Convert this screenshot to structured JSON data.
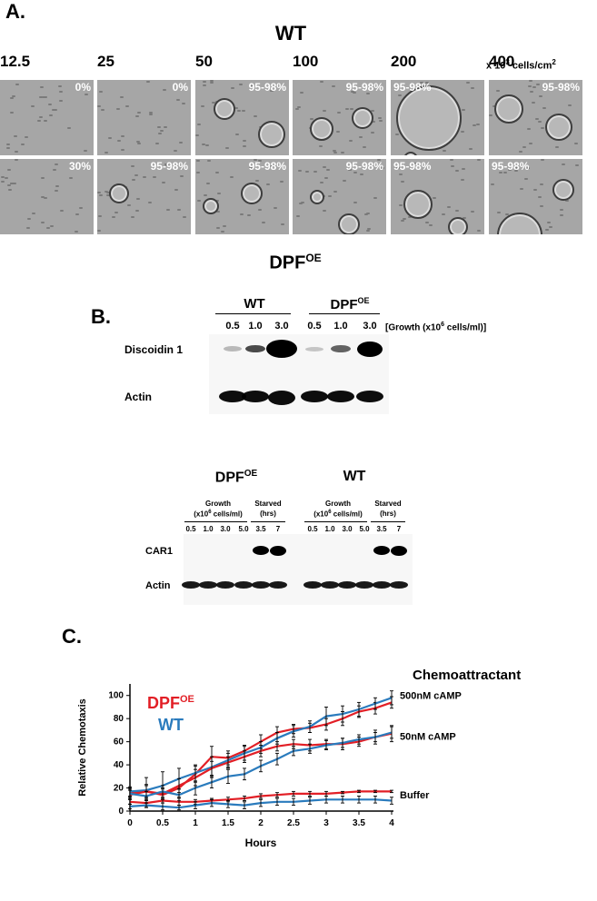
{
  "panel_a": {
    "label": "A.",
    "title_top": "WT",
    "title_bottom_base": "DPF",
    "title_bottom_sup": "OE",
    "densities": [
      "12.5",
      "25",
      "50",
      "100",
      "200",
      "400"
    ],
    "unit_base": "x 10",
    "unit_sup": "3",
    "unit_rest": " cells/cm",
    "unit_sup2": "2",
    "row_wt": [
      "0%",
      "0%",
      "95-98%",
      "95-98%",
      "95-98%",
      "95-98%"
    ],
    "row_dpf": [
      "30%",
      "95-98%",
      "95-98%",
      "95-98%",
      "95-98%",
      "95-98%"
    ]
  },
  "panel_b": {
    "label": "B.",
    "blot1": {
      "group_wt": "WT",
      "group_dpf_base": "DPF",
      "group_dpf_sup": "OE",
      "lanes": [
        "0.5",
        "1.0",
        "3.0",
        "0.5",
        "1.0",
        "3.0"
      ],
      "growth_label_base": "[Growth (x10",
      "growth_label_sup": "6",
      "growth_label_rest": " cells/ml)]",
      "row1": "Discoidin 1",
      "row2": "Actin"
    },
    "blot2": {
      "group_dpf_base": "DPF",
      "group_dpf_sup": "OE",
      "group_wt": "WT",
      "growth_line1": "Growth",
      "growth_line2_base": "(x10",
      "growth_line2_sup": "6",
      "growth_line2_rest": " cells/ml)",
      "starved_line1": "Starved",
      "starved_line2": "(hrs)",
      "lanes": [
        "0.5",
        "1.0",
        "3.0",
        "5.0",
        "3.5",
        "7"
      ],
      "row1": "CAR1",
      "row2": "Actin"
    }
  },
  "panel_c": {
    "label": "C.",
    "legend_dpf_base": "DPF",
    "legend_dpf_sup": "OE",
    "legend_wt": "WT",
    "chemo_title": "Chemoattractant",
    "colors": {
      "dpf": "#e21f26",
      "wt": "#2a7bbd"
    },
    "chart_data": {
      "type": "line",
      "xlabel": "Hours",
      "ylabel": "Relative  Chemotaxis",
      "xlim": [
        0,
        4
      ],
      "ylim": [
        0,
        110
      ],
      "xticks": [
        "0",
        "0.5",
        "1",
        "1.5",
        "2",
        "2.5",
        "3",
        "3.5",
        "4"
      ],
      "yticks": [
        "0",
        "20",
        "40",
        "60",
        "80",
        "100"
      ],
      "x": [
        0,
        0.25,
        0.5,
        0.75,
        1,
        1.25,
        1.5,
        1.75,
        2,
        2.25,
        2.5,
        2.75,
        3,
        3.25,
        3.5,
        3.75,
        4
      ],
      "annotations": [
        "500nM cAMP",
        "50nM cAMP",
        "Buffer"
      ],
      "series": [
        {
          "name": "DPFOE",
          "group": "500nM cAMP",
          "values": [
            16,
            17,
            14,
            20,
            32,
            47,
            46,
            52,
            60,
            68,
            71,
            72,
            75,
            80,
            86,
            89,
            94
          ],
          "err": [
            4,
            6,
            5,
            8,
            7,
            9,
            6,
            5,
            6,
            5,
            4,
            4,
            5,
            6,
            5,
            5,
            5
          ]
        },
        {
          "name": "WT",
          "group": "500nM cAMP",
          "values": [
            17,
            18,
            22,
            28,
            33,
            38,
            44,
            50,
            55,
            63,
            69,
            73,
            82,
            84,
            88,
            93,
            98
          ],
          "err": [
            4,
            11,
            12,
            9,
            7,
            9,
            6,
            6,
            5,
            5,
            5,
            5,
            8,
            7,
            6,
            5,
            6
          ]
        },
        {
          "name": "DPFOE",
          "group": "50nM cAMP",
          "values": [
            14,
            17,
            15,
            22,
            29,
            37,
            42,
            47,
            52,
            56,
            58,
            57,
            58,
            58,
            60,
            64,
            67
          ],
          "err": [
            4,
            5,
            5,
            6,
            7,
            6,
            5,
            5,
            5,
            4,
            4,
            5,
            4,
            5,
            4,
            6,
            7
          ]
        },
        {
          "name": "WT",
          "group": "50nM cAMP",
          "values": [
            15,
            13,
            17,
            14,
            20,
            25,
            30,
            32,
            39,
            45,
            52,
            54,
            57,
            59,
            62,
            64,
            68
          ],
          "err": [
            4,
            4,
            5,
            5,
            6,
            5,
            6,
            5,
            5,
            5,
            4,
            4,
            4,
            4,
            4,
            4,
            5
          ]
        },
        {
          "name": "DPFOE",
          "group": "Buffer",
          "values": [
            8,
            7,
            9,
            8,
            8,
            9,
            10,
            11,
            13,
            14,
            15,
            15,
            15,
            16,
            17,
            17,
            17
          ],
          "err": [
            2,
            3,
            2,
            3,
            2,
            2,
            2,
            2,
            2,
            2,
            2,
            2,
            2,
            1,
            1,
            1,
            1
          ]
        },
        {
          "name": "WT",
          "group": "Buffer",
          "values": [
            4,
            5,
            4,
            3,
            5,
            7,
            6,
            5,
            7,
            8,
            8,
            9,
            10,
            10,
            10,
            10,
            9
          ],
          "err": [
            2,
            2,
            3,
            2,
            3,
            3,
            3,
            3,
            3,
            3,
            3,
            3,
            3,
            3,
            3,
            3,
            3
          ]
        }
      ]
    }
  }
}
